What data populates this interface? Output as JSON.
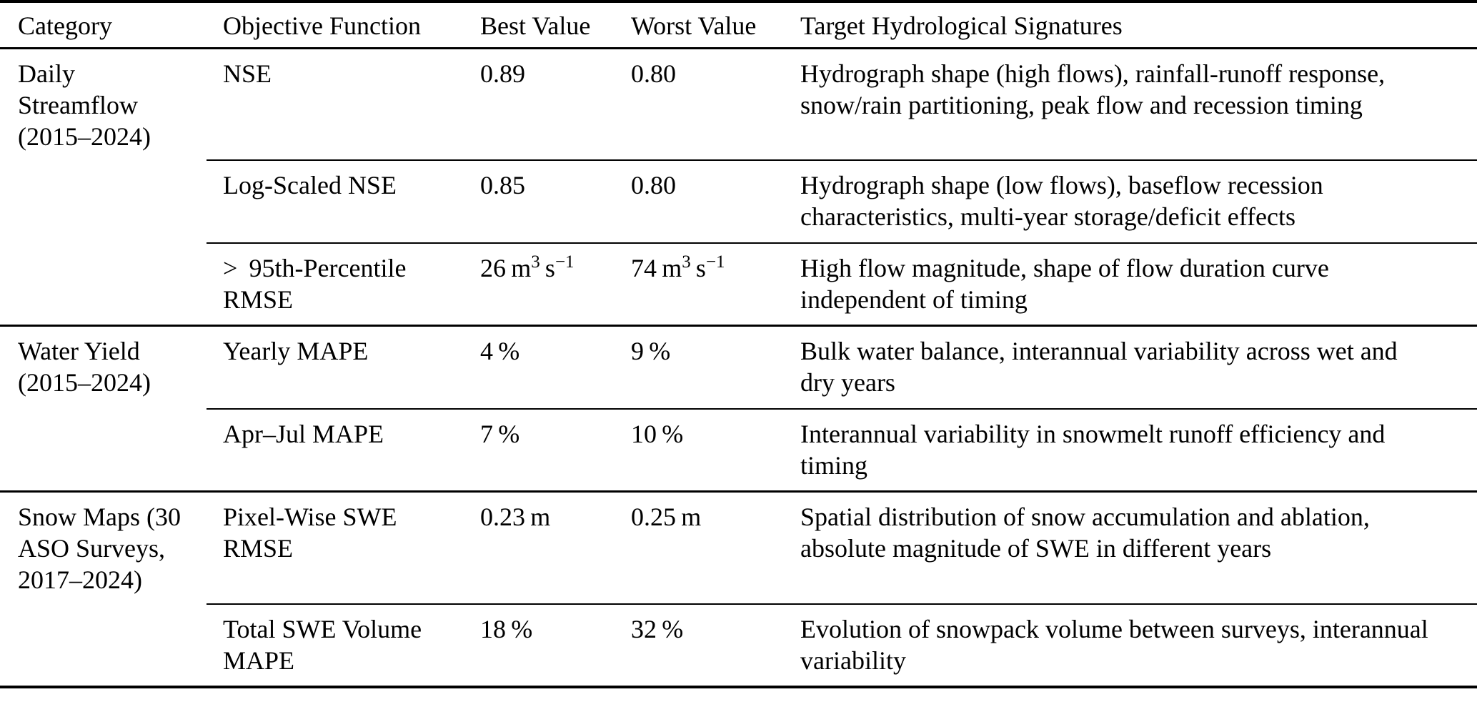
{
  "table": {
    "header": {
      "category": "Category",
      "objective": "Objective Function",
      "best": "Best Value",
      "worst": "Worst Value",
      "signatures": "Target Hydrological Signatures"
    },
    "groups": [
      {
        "category_lines": [
          "Daily",
          "Streamflow",
          "(2015–2024)"
        ],
        "rows": [
          {
            "objective": "NSE",
            "best": "0.89",
            "worst": "0.80",
            "signatures": [
              "Hydrograph shape (high flows), rainfall-runoff response,",
              "snow/rain partitioning, peak flow and recession timing"
            ]
          },
          {
            "objective": "Log-Scaled NSE",
            "best": "0.85",
            "worst": "0.80",
            "signatures": [
              "Hydrograph shape (low flows), baseflow recession",
              "characteristics, multi-year storage/deficit effects"
            ]
          },
          {
            "objective": [
              ">  95th-Percentile",
              "RMSE"
            ],
            "best": [
              {
                "text": "26 m"
              },
              {
                "sup": "3"
              },
              {
                "text": " s"
              },
              {
                "sup": "−1"
              }
            ],
            "worst": [
              {
                "text": "74 m"
              },
              {
                "sup": "3"
              },
              {
                "text": " s"
              },
              {
                "sup": "−1"
              }
            ],
            "signatures": [
              "High flow magnitude, shape of flow duration curve",
              "independent of timing"
            ]
          }
        ]
      },
      {
        "category_lines": [
          "Water Yield",
          "(2015–2024)"
        ],
        "rows": [
          {
            "objective": "Yearly MAPE",
            "best": "4 %",
            "worst": "9 %",
            "signatures": [
              "Bulk water balance, interannual variability across wet and",
              "dry years"
            ]
          },
          {
            "objective": "Apr–Jul MAPE",
            "best": "7 %",
            "worst": "10 %",
            "signatures": [
              "Interannual variability in snowmelt runoff efficiency and",
              "timing"
            ]
          }
        ]
      },
      {
        "category_lines": [
          "Snow Maps (30",
          "ASO Surveys,",
          "2017–2024)"
        ],
        "rows": [
          {
            "objective": [
              "Pixel-Wise SWE",
              "RMSE"
            ],
            "best": "0.23 m",
            "worst": "0.25 m",
            "signatures": [
              "Spatial distribution of snow accumulation and ablation,",
              "absolute magnitude of SWE in different years"
            ]
          },
          {
            "objective": [
              "Total SWE Volume",
              "MAPE"
            ],
            "best": "18 %",
            "worst": "32 %",
            "signatures": [
              "Evolution of snowpack volume between surveys, interannual",
              "variability"
            ]
          }
        ]
      }
    ]
  }
}
